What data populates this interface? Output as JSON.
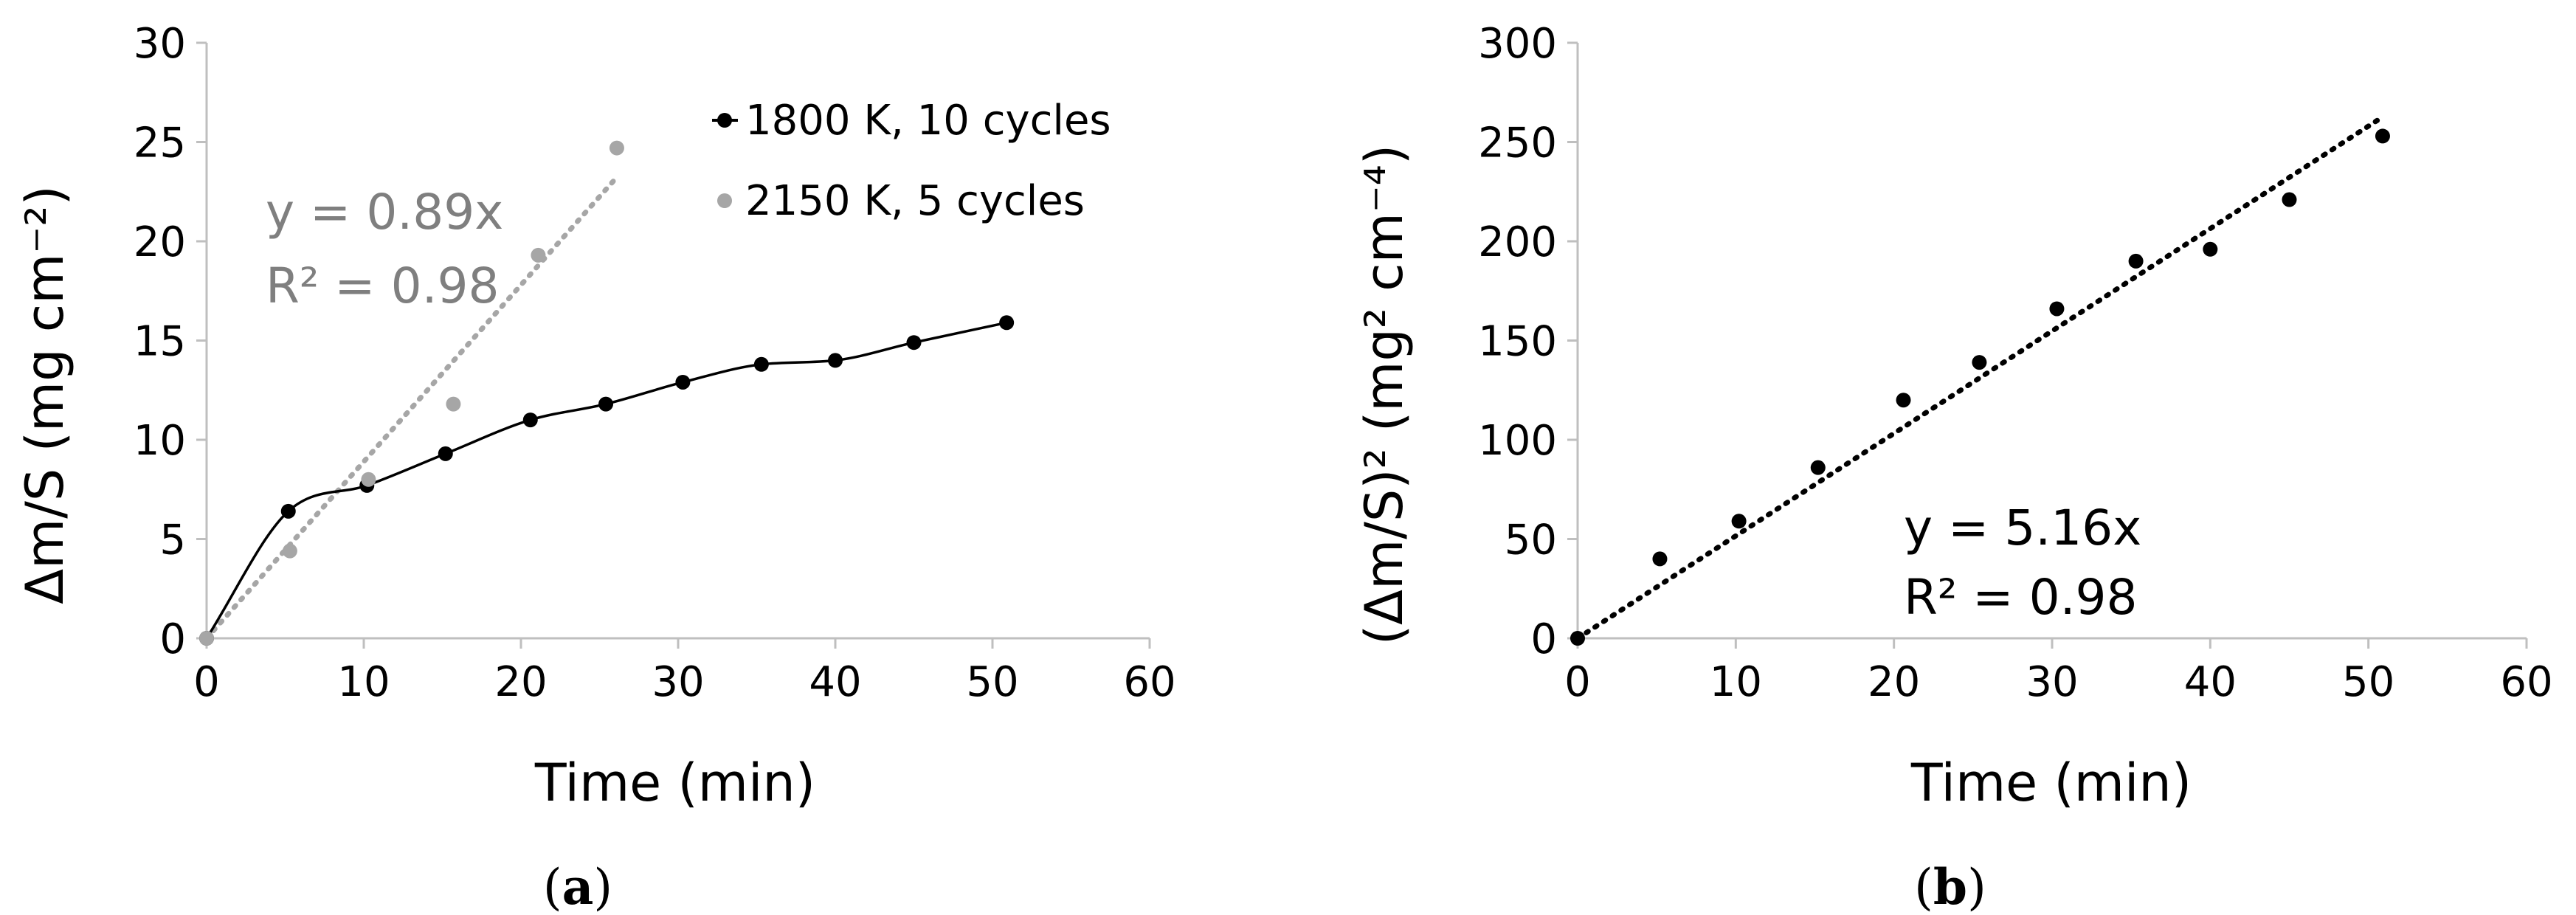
{
  "chart_data": [
    {
      "type": "scatter",
      "panel_label": "a",
      "xlabel": "Time (min)",
      "ylabel": "Δm/S (mg cm⁻²)",
      "xlim": [
        0,
        60
      ],
      "ylim": [
        0,
        30
      ],
      "xticks": [
        0,
        10,
        20,
        30,
        40,
        50,
        60
      ],
      "yticks": [
        0,
        5,
        10,
        15,
        20,
        25,
        30
      ],
      "grid": false,
      "legend_position": "top-right",
      "series": [
        {
          "name": "1800 K, 10 cycles",
          "color": "#000000",
          "style": "smoothed-line-with-markers",
          "x": [
            0,
            5.2,
            10.2,
            15.2,
            20.6,
            25.4,
            30.3,
            35.3,
            40.0,
            45.0,
            50.9
          ],
          "y": [
            0,
            6.4,
            7.7,
            9.3,
            11.0,
            11.8,
            12.9,
            13.8,
            14.0,
            14.9,
            15.9
          ]
        },
        {
          "name": "2150 K, 5 cycles",
          "color": "#a6a6a6",
          "style": "markers",
          "x": [
            0,
            5.3,
            10.3,
            15.7,
            21.1,
            26.1
          ],
          "y": [
            0,
            4.4,
            8.0,
            11.8,
            19.3,
            24.7
          ]
        }
      ],
      "trendline": {
        "series": "2150 K, 5 cycles",
        "color": "#a6a6a6",
        "style": "dotted",
        "slope": 0.89,
        "x_range": [
          0,
          26.1
        ],
        "equation": "y = 0.89x",
        "r2": "R² = 0.98",
        "text_color": "#7f7f7f"
      }
    },
    {
      "type": "scatter",
      "panel_label": "b",
      "xlabel": "Time (min)",
      "ylabel": "(Δm/S)² (mg² cm⁻⁴)",
      "xlim": [
        0,
        60
      ],
      "ylim": [
        0,
        300
      ],
      "xticks": [
        0,
        10,
        20,
        30,
        40,
        50,
        60
      ],
      "yticks": [
        0,
        50,
        100,
        150,
        200,
        250,
        300
      ],
      "grid": false,
      "series": [
        {
          "color": "#000000",
          "style": "markers",
          "x": [
            0,
            5.2,
            10.2,
            15.2,
            20.6,
            25.4,
            30.3,
            35.3,
            40.0,
            45.0,
            50.9
          ],
          "y": [
            0,
            40,
            59,
            86,
            120,
            139,
            166,
            190,
            196,
            221,
            253
          ]
        }
      ],
      "trendline": {
        "color": "#000000",
        "style": "dotted",
        "slope": 5.16,
        "x_range": [
          0,
          50.9
        ],
        "equation": "y = 5.16x",
        "r2": "R² = 0.98",
        "text_color": "#000000"
      }
    }
  ]
}
